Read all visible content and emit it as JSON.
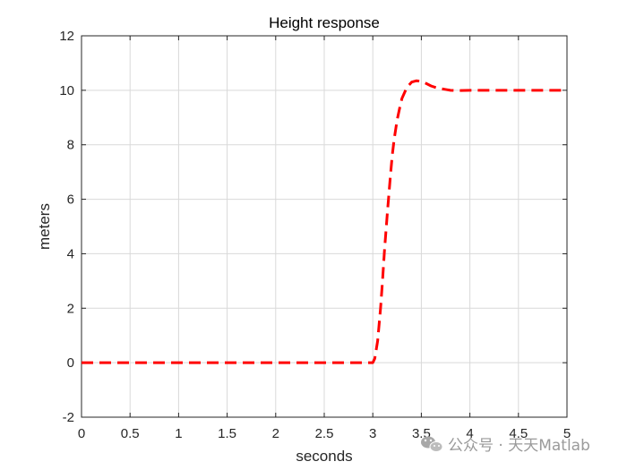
{
  "chart_data": {
    "type": "line",
    "title": "Height response",
    "xlabel": "seconds",
    "ylabel": "meters",
    "xlim": [
      0,
      5
    ],
    "ylim": [
      -2,
      12
    ],
    "xticks": [
      0,
      0.5,
      1,
      1.5,
      2,
      2.5,
      3,
      3.5,
      4,
      4.5,
      5
    ],
    "xtick_labels": [
      "0",
      "0.5",
      "1",
      "1.5",
      "2",
      "2.5",
      "3",
      "3.5",
      "4",
      "4.5",
      "5"
    ],
    "yticks": [
      -2,
      0,
      2,
      4,
      6,
      8,
      10,
      12
    ],
    "ytick_labels": [
      "-2",
      "0",
      "2",
      "4",
      "6",
      "8",
      "10",
      "12"
    ],
    "grid": true,
    "series": [
      {
        "color": "#ff0000",
        "line_style": "dashed",
        "x": [
          0,
          0.5,
          1,
          1.5,
          2,
          2.5,
          3.0,
          3.02,
          3.05,
          3.08,
          3.1,
          3.12,
          3.15,
          3.18,
          3.2,
          3.22,
          3.25,
          3.28,
          3.3,
          3.35,
          3.4,
          3.45,
          3.5,
          3.55,
          3.6,
          3.65,
          3.7,
          3.75,
          3.8,
          3.85,
          3.9,
          4.0,
          4.1,
          4.2,
          4.4,
          4.6,
          4.8,
          5.0
        ],
        "y": [
          0,
          0,
          0,
          0,
          0,
          0,
          0,
          0.15,
          0.8,
          2.0,
          3.0,
          4.1,
          5.5,
          6.8,
          7.6,
          8.2,
          8.9,
          9.4,
          9.7,
          10.1,
          10.3,
          10.35,
          10.33,
          10.25,
          10.16,
          10.1,
          10.06,
          10.03,
          10.0,
          9.99,
          9.99,
          10.0,
          10.0,
          10.0,
          10.0,
          10.0,
          10.0,
          10.0
        ]
      }
    ]
  },
  "watermark": {
    "text": "公众号 · 天天Matlab",
    "icon": "wechat-icon",
    "color": "#9a9a9a"
  }
}
